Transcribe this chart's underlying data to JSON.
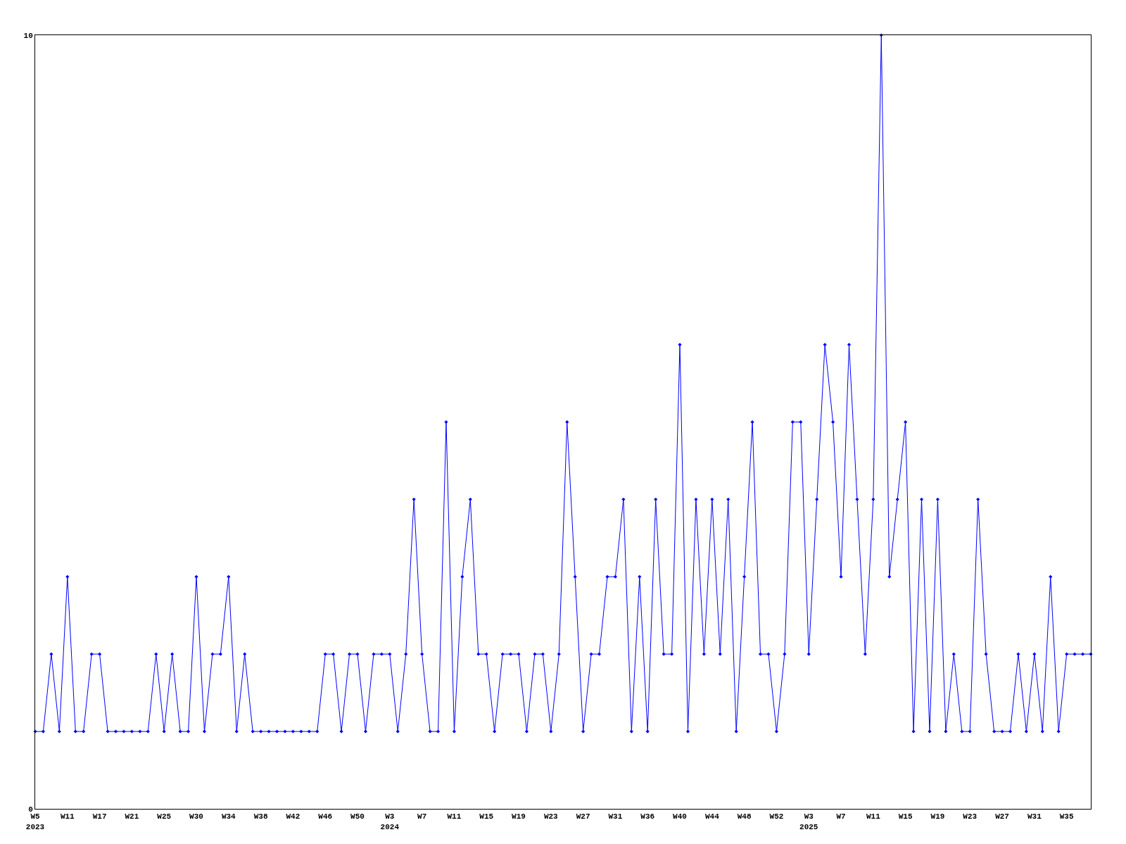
{
  "chart_data": {
    "type": "line",
    "categories": [
      "W5\n2023",
      null,
      null,
      null,
      "W11",
      null,
      null,
      null,
      "W17",
      null,
      null,
      null,
      "W21",
      null,
      null,
      null,
      "W25",
      null,
      null,
      null,
      "W30",
      null,
      null,
      null,
      "W34",
      null,
      null,
      null,
      "W38",
      null,
      null,
      null,
      "W42",
      null,
      null,
      null,
      "W46",
      null,
      null,
      null,
      "W50",
      null,
      null,
      null,
      "W3\n2024",
      null,
      null,
      null,
      "W7",
      null,
      null,
      null,
      "W11",
      null,
      null,
      null,
      "W15",
      null,
      null,
      null,
      "W19",
      null,
      null,
      null,
      "W23",
      null,
      null,
      null,
      "W27",
      null,
      null,
      null,
      "W31",
      null,
      null,
      null,
      "W36",
      null,
      null,
      null,
      "W40",
      null,
      null,
      null,
      "W44",
      null,
      null,
      null,
      "W48",
      null,
      null,
      null,
      "W52",
      null,
      null,
      null,
      "W3\n2025",
      null,
      null,
      null,
      "W7",
      null,
      null,
      null,
      "W11",
      null,
      null,
      null,
      "W15",
      null,
      null,
      null,
      "W19",
      null,
      null,
      null,
      "W23",
      null,
      null,
      null,
      "W27",
      null,
      null,
      null,
      "W31",
      null,
      null,
      null,
      "W35",
      null,
      null,
      null
    ],
    "series": [
      {
        "color": "#0000ff",
        "values": [
          1,
          1,
          2,
          1,
          3,
          1,
          1,
          2,
          2,
          1,
          1,
          1,
          1,
          1,
          1,
          2,
          1,
          2,
          1,
          1,
          3,
          1,
          2,
          2,
          3,
          1,
          2,
          1,
          1,
          1,
          1,
          1,
          1,
          1,
          1,
          1,
          2,
          2,
          1,
          2,
          2,
          1,
          2,
          2,
          2,
          1,
          2,
          4,
          2,
          1,
          1,
          5,
          1,
          3,
          4,
          2,
          2,
          1,
          2,
          2,
          2,
          1,
          2,
          2,
          1,
          2,
          5,
          3,
          1,
          2,
          2,
          3,
          3,
          4,
          1,
          3,
          1,
          4,
          2,
          2,
          6,
          1,
          4,
          2,
          4,
          2,
          4,
          1,
          3,
          5,
          2,
          2,
          1,
          2,
          5,
          5,
          2,
          4,
          6,
          5,
          3,
          6,
          4,
          2,
          4,
          10,
          3,
          4,
          5,
          1,
          4,
          1,
          4,
          1,
          2,
          1,
          1,
          4,
          2,
          1,
          1,
          1,
          2,
          1,
          2,
          1,
          3,
          1,
          2,
          2,
          2,
          2
        ]
      }
    ],
    "ylim": [
      0,
      10
    ],
    "yticks": [
      0,
      10
    ],
    "legend": false,
    "marker": "diamond",
    "line_style": "solid"
  }
}
